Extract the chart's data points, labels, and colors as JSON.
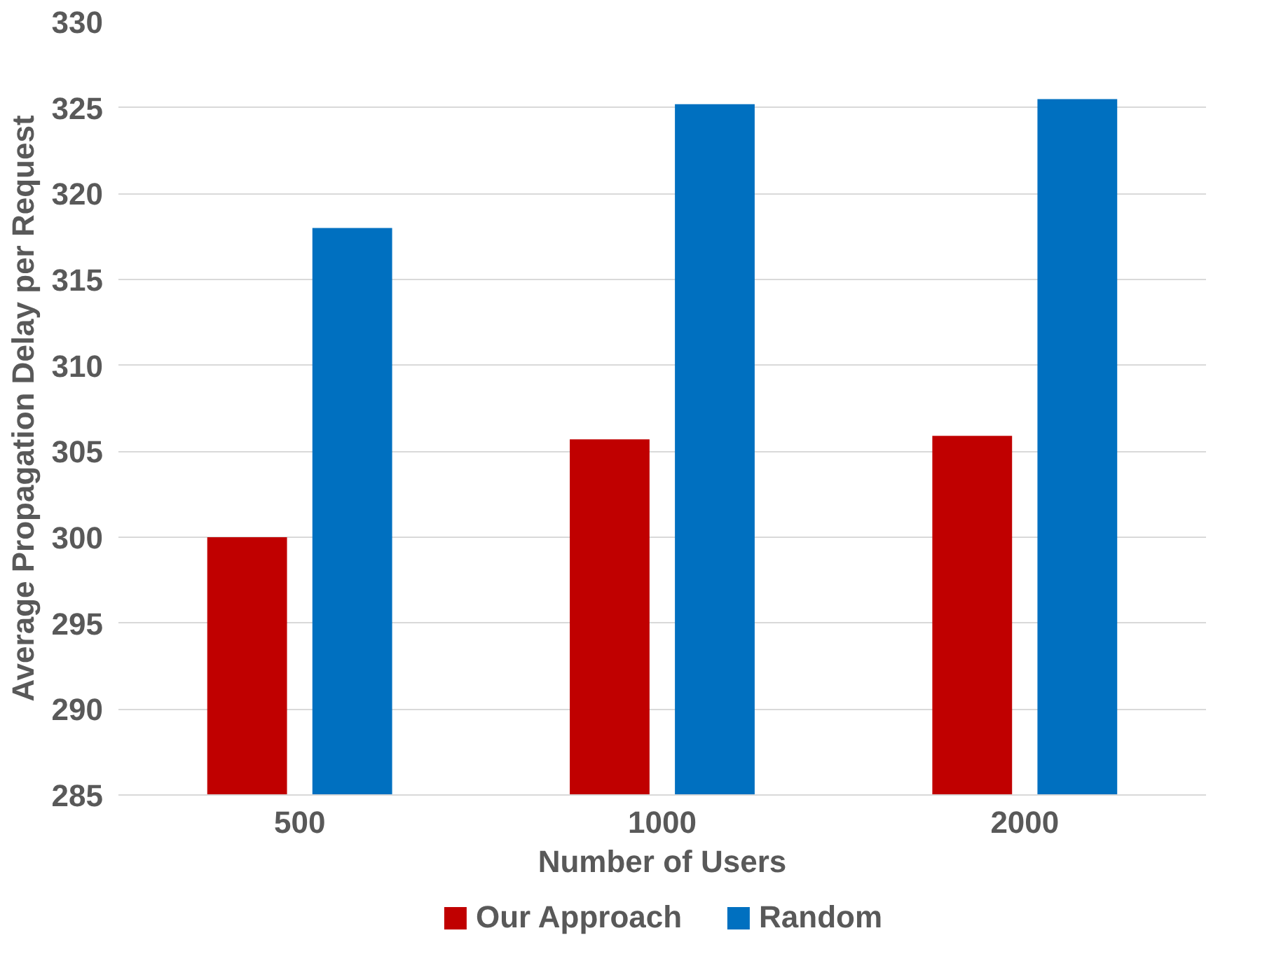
{
  "chart_data": {
    "type": "bar",
    "xlabel": "Number of Users",
    "ylabel": "Average Propagation Delay per Request",
    "categories": [
      "500",
      "1000",
      "2000"
    ],
    "series": [
      {
        "name": "Our Approach",
        "color": "#c00000",
        "values": [
          300,
          305.7,
          305.9
        ]
      },
      {
        "name": "Random",
        "color": "#0070c0",
        "values": [
          318,
          325.2,
          325.5
        ]
      }
    ],
    "ylim": [
      285,
      330
    ],
    "yticks": [
      285,
      290,
      295,
      300,
      305,
      310,
      315,
      320,
      325,
      330
    ],
    "grid": "y",
    "legend": "bottom"
  }
}
